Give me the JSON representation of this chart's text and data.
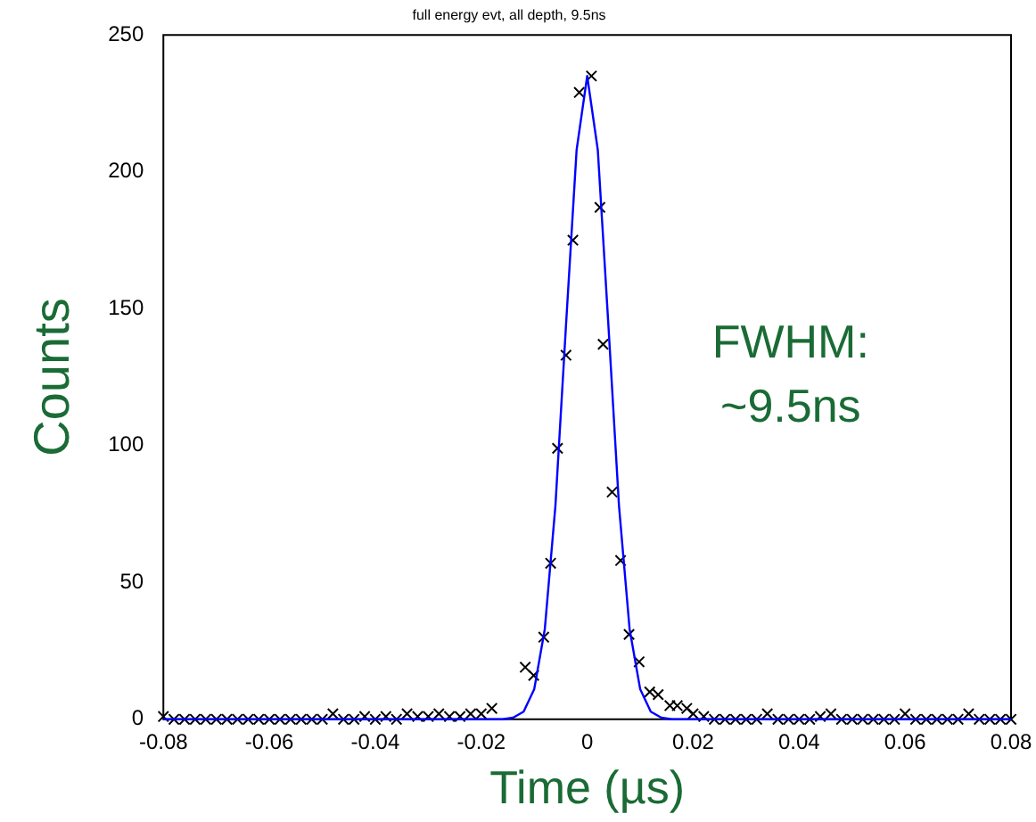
{
  "chart_data": {
    "type": "scatter",
    "title": "full energy evt, all depth, 9.5ns",
    "xlabel": "Time (µs)",
    "ylabel": "Counts",
    "xlim": [
      -0.08,
      0.08
    ],
    "xticks": [
      -0.08,
      -0.06,
      -0.04,
      -0.02,
      0,
      0.02,
      0.04,
      0.06,
      0.08
    ],
    "ylim": [
      0,
      250
    ],
    "yticks": [
      0,
      50,
      100,
      150,
      200,
      250
    ],
    "grid": false,
    "legend": false,
    "annotations": [
      "FWHM:\n~9.5ns"
    ],
    "series": [
      {
        "type": "scatter",
        "marker": "cross",
        "color": "#000000",
        "x": [
          -0.08,
          -0.078,
          -0.076,
          -0.074,
          -0.072,
          -0.07,
          -0.068,
          -0.066,
          -0.064,
          -0.062,
          -0.06,
          -0.058,
          -0.056,
          -0.054,
          -0.052,
          -0.05,
          -0.048,
          -0.046,
          -0.044,
          -0.042,
          -0.04,
          -0.038,
          -0.036,
          -0.034,
          -0.032,
          -0.03,
          -0.028,
          -0.026,
          -0.024,
          -0.022,
          -0.02,
          -0.018,
          -0.0117,
          -0.0101,
          -0.0082,
          -0.0069,
          -0.0056,
          -0.004,
          -0.0027,
          -0.0015,
          0.0008,
          0.0024,
          0.003,
          0.0047,
          0.0063,
          0.0079,
          0.0098,
          0.0118,
          0.0134,
          0.0156,
          0.017,
          0.0188,
          0.02,
          0.022,
          0.024,
          0.026,
          0.028,
          0.03,
          0.032,
          0.034,
          0.036,
          0.038,
          0.04,
          0.042,
          0.044,
          0.046,
          0.048,
          0.05,
          0.052,
          0.054,
          0.056,
          0.058,
          0.06,
          0.062,
          0.064,
          0.066,
          0.068,
          0.07,
          0.072,
          0.074,
          0.076,
          0.078,
          0.08
        ],
        "values": [
          1,
          0,
          0,
          0,
          0,
          0,
          0,
          0,
          0,
          0,
          0,
          0,
          0,
          0,
          0,
          0,
          2,
          0,
          0,
          1,
          0,
          1,
          0,
          2,
          1,
          1,
          2,
          1,
          1,
          2,
          2,
          4,
          19,
          16,
          30,
          57,
          99,
          133,
          175,
          229,
          235,
          187,
          137,
          83,
          58,
          31,
          21,
          10,
          9,
          5,
          5,
          4,
          2,
          1,
          0,
          0,
          0,
          0,
          0,
          2,
          0,
          0,
          0,
          0,
          1,
          2,
          0,
          0,
          0,
          0,
          0,
          0,
          2,
          0,
          0,
          0,
          0,
          0,
          2,
          0,
          0,
          0,
          0
        ]
      },
      {
        "type": "line",
        "marker": "none",
        "color": "#0000ff",
        "x": [
          -0.08,
          -0.016,
          -0.014,
          -0.012,
          -0.01,
          -0.008,
          -0.006,
          -0.004,
          -0.002,
          0,
          0.002,
          0.004,
          0.006,
          0.008,
          0.01,
          0.012,
          0.014,
          0.016,
          0.08
        ],
        "values": [
          0,
          0,
          0.6,
          2.8,
          11,
          33,
          78,
          144,
          208,
          235,
          208,
          144,
          78,
          33,
          11,
          2.8,
          0.6,
          0,
          0
        ]
      }
    ]
  }
}
